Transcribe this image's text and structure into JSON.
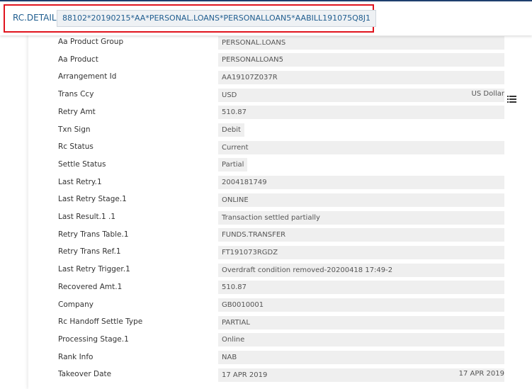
{
  "header": {
    "label": "RC.DETAIL",
    "id": "88102*20190215*AA*PERSONAL.LOANS*PERSONALLOAN5*AABILL191075Q8J1"
  },
  "fields": [
    {
      "label": "Aa Product Group",
      "value": "PERSONAL.LOANS"
    },
    {
      "label": "Aa Product",
      "value": "PERSONALLOAN5"
    },
    {
      "label": "Arrangement Id",
      "value": "AA19107Z037R"
    },
    {
      "label": "Trans Ccy",
      "value": "USD",
      "extra": "US Dollar"
    },
    {
      "label": "Retry Amt",
      "value": "510.87"
    },
    {
      "label": "Txn Sign",
      "value": "Debit"
    },
    {
      "label": "Rc Status",
      "value": "Current"
    },
    {
      "label": "Settle Status",
      "value": "Partial"
    },
    {
      "label": "Last Retry.1",
      "value": "2004181749"
    },
    {
      "label": "Last Retry Stage.1",
      "value": "ONLINE"
    },
    {
      "label": "Last Result.1 .1",
      "value": "Transaction settled partially"
    },
    {
      "label": "Retry Trans Table.1",
      "value": "FUNDS.TRANSFER"
    },
    {
      "label": "Retry Trans Ref.1",
      "value": "FT191073RGDZ"
    },
    {
      "label": "Last Retry Trigger.1",
      "value": "Overdraft condition removed-20200418 17:49-2"
    },
    {
      "label": "Recovered Amt.1",
      "value": "510.87"
    },
    {
      "label": "Company",
      "value": "GB0010001"
    },
    {
      "label": "Rc Handoff Settle Type",
      "value": "PARTIAL"
    },
    {
      "label": "Processing Stage.1",
      "value": "Online"
    },
    {
      "label": "Rank Info",
      "value": "NAB"
    },
    {
      "label": "Takeover Date",
      "value": "17 APR 2019",
      "extra": "17 APR 2019"
    }
  ]
}
